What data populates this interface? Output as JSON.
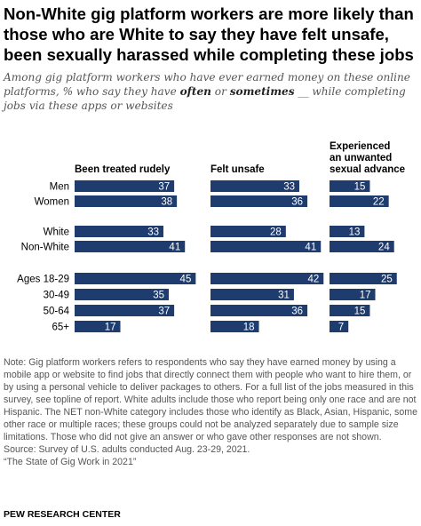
{
  "title": "Non-White gig platform workers are more likely than those who are White to say they have felt unsafe, been sexually harassed while completing these jobs",
  "subtitle": {
    "part1": "Among gig platform workers who have ever earned money on these online platforms, % who say they have ",
    "often": "often",
    "or": " or ",
    "sometimes": "sometimes",
    "part2": " __ while completing jobs via these apps or websites"
  },
  "chart_data": {
    "type": "bar",
    "orientation": "horizontal",
    "bar_color": "#1f3c6e",
    "label_color": "#ffffff",
    "categories": [
      "Men",
      "Women",
      "White",
      "Non-White",
      "Ages 18-29",
      "30-49",
      "50-64",
      "65+"
    ],
    "groups": [
      [
        "Men",
        "Women"
      ],
      [
        "White",
        "Non-White"
      ],
      [
        "Ages 18-29",
        "30-49",
        "50-64",
        "65+"
      ]
    ],
    "series": [
      {
        "name": "Been treated rudely",
        "values": [
          37,
          38,
          33,
          41,
          45,
          35,
          37,
          17
        ]
      },
      {
        "name": "Felt unsafe",
        "values": [
          33,
          36,
          28,
          41,
          42,
          31,
          36,
          18
        ]
      },
      {
        "name": "Experienced an unwanted sexual advance",
        "values": [
          15,
          22,
          13,
          24,
          25,
          17,
          15,
          7
        ]
      }
    ]
  },
  "notes": {
    "note": "Note: Gig platform workers refers to respondents who say they have earned money by using a mobile app or website to find jobs that directly connect them with people who want to hire them, or by using a personal vehicle to deliver packages to others. For a full list of the jobs measured in this survey, see topline of report. White adults include those who report being only one race and are not Hispanic. The NET non-White category includes those who identify as Black, Asian, Hispanic, some other race or multiple races; these groups could not be analyzed separately due to sample size limitations. Those who did not give an answer or who gave other responses are not shown.",
    "source": "Source: Survey of U.S. adults conducted Aug. 23-29, 2021.",
    "report": "“The State of Gig Work in 2021”"
  },
  "brand": "PEW RESEARCH CENTER"
}
